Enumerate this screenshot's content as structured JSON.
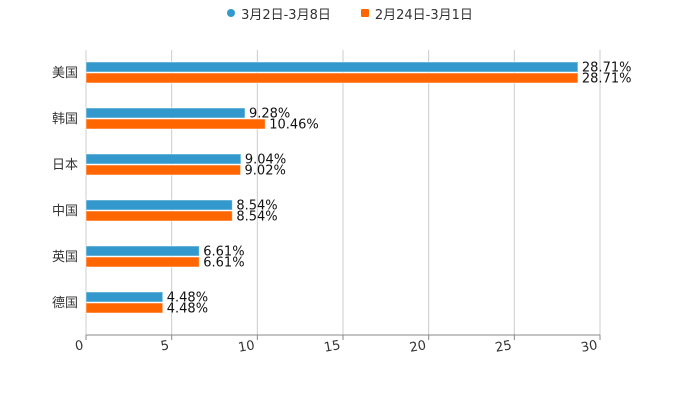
{
  "chart_data": {
    "type": "bar",
    "orientation": "horizontal",
    "title": "",
    "xlabel": "",
    "ylabel": "",
    "categories": [
      "美国",
      "韩国",
      "日本",
      "中国",
      "英国",
      "德国"
    ],
    "series": [
      {
        "name": "3月2日-3月8日",
        "color": "#3399cc",
        "values": [
          28.71,
          9.28,
          9.04,
          8.54,
          6.61,
          4.48
        ],
        "labels": [
          "28.71%",
          "9.28%",
          "9.04%",
          "8.54%",
          "6.61%",
          "4.48%"
        ]
      },
      {
        "name": "2月24日-3月1日",
        "color": "#ff6600",
        "values": [
          28.71,
          10.46,
          9.02,
          8.54,
          6.61,
          4.48
        ],
        "labels": [
          "28.71%",
          "10.46%",
          "9.02%",
          "8.54%",
          "6.61%",
          "4.48%"
        ]
      }
    ],
    "xlim": [
      0,
      30
    ],
    "xticks": [
      "0",
      "5",
      "10",
      "15",
      "20",
      "25",
      "30"
    ],
    "grid": true,
    "legend_position": "top"
  },
  "legend": {
    "items": [
      {
        "label": "3月2日-3月8日",
        "color": "#3399cc",
        "shape": "circle"
      },
      {
        "label": "2月24日-3月1日",
        "color": "#ff6600",
        "shape": "square"
      }
    ]
  }
}
